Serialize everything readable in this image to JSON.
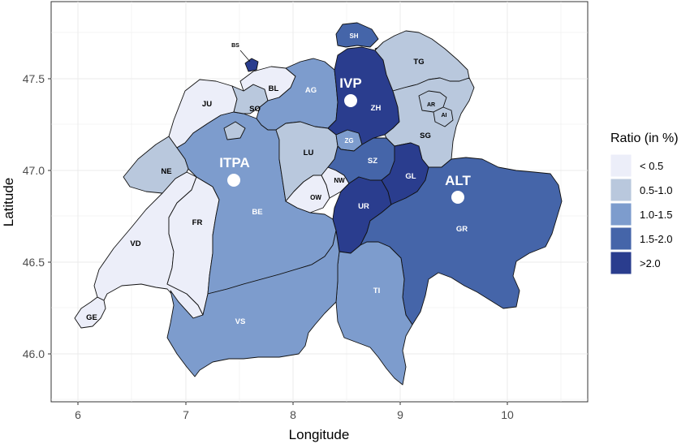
{
  "axes": {
    "xlabel": "Longitude",
    "ylabel": "Latitude",
    "xlim": [
      5.75,
      10.75
    ],
    "ylim": [
      45.78,
      47.88
    ],
    "xticks": [
      "6",
      "7",
      "8",
      "9",
      "10"
    ],
    "yticks": [
      "46.0",
      "46.5",
      "47.0",
      "47.5"
    ]
  },
  "legend": {
    "title": "Ratio (in %)",
    "items": [
      {
        "label": "< 0.5",
        "color": "#eceef9"
      },
      {
        "label": "0.5-1.0",
        "color": "#b9c8dd"
      },
      {
        "label": "1.0-1.5",
        "color": "#7d9ccd"
      },
      {
        "label": "1.5-2.0",
        "color": "#4565a9"
      },
      {
        "label": ">2.0",
        "color": "#2a3d8e"
      }
    ]
  },
  "cantons": {
    "GE": "GE",
    "VD": "VD",
    "FR": "FR",
    "NE": "NE",
    "JU": "JU",
    "BE": "BE",
    "SO": "SO",
    "BL": "BL",
    "BS": "BS",
    "AG": "AG",
    "LU": "LU",
    "OW": "OW",
    "NW": "NW",
    "ZG": "ZG",
    "SZ": "SZ",
    "UR": "UR",
    "ZH": "ZH",
    "SH": "SH",
    "TG": "TG",
    "SG": "SG",
    "AR": "AR",
    "AI": "AI",
    "GL": "GL",
    "GR": "GR",
    "TI": "TI",
    "VS": "VS"
  },
  "sites": {
    "ITPA": "ITPA",
    "IVP": "IVP",
    "ALT": "ALT"
  },
  "colors": {
    "lt05": "#eceef9",
    "r05_10": "#b9c8dd",
    "r10_15": "#7d9ccd",
    "r15_20": "#4565a9",
    "gt20": "#2a3d8e",
    "grid": "#ebebeb"
  }
}
